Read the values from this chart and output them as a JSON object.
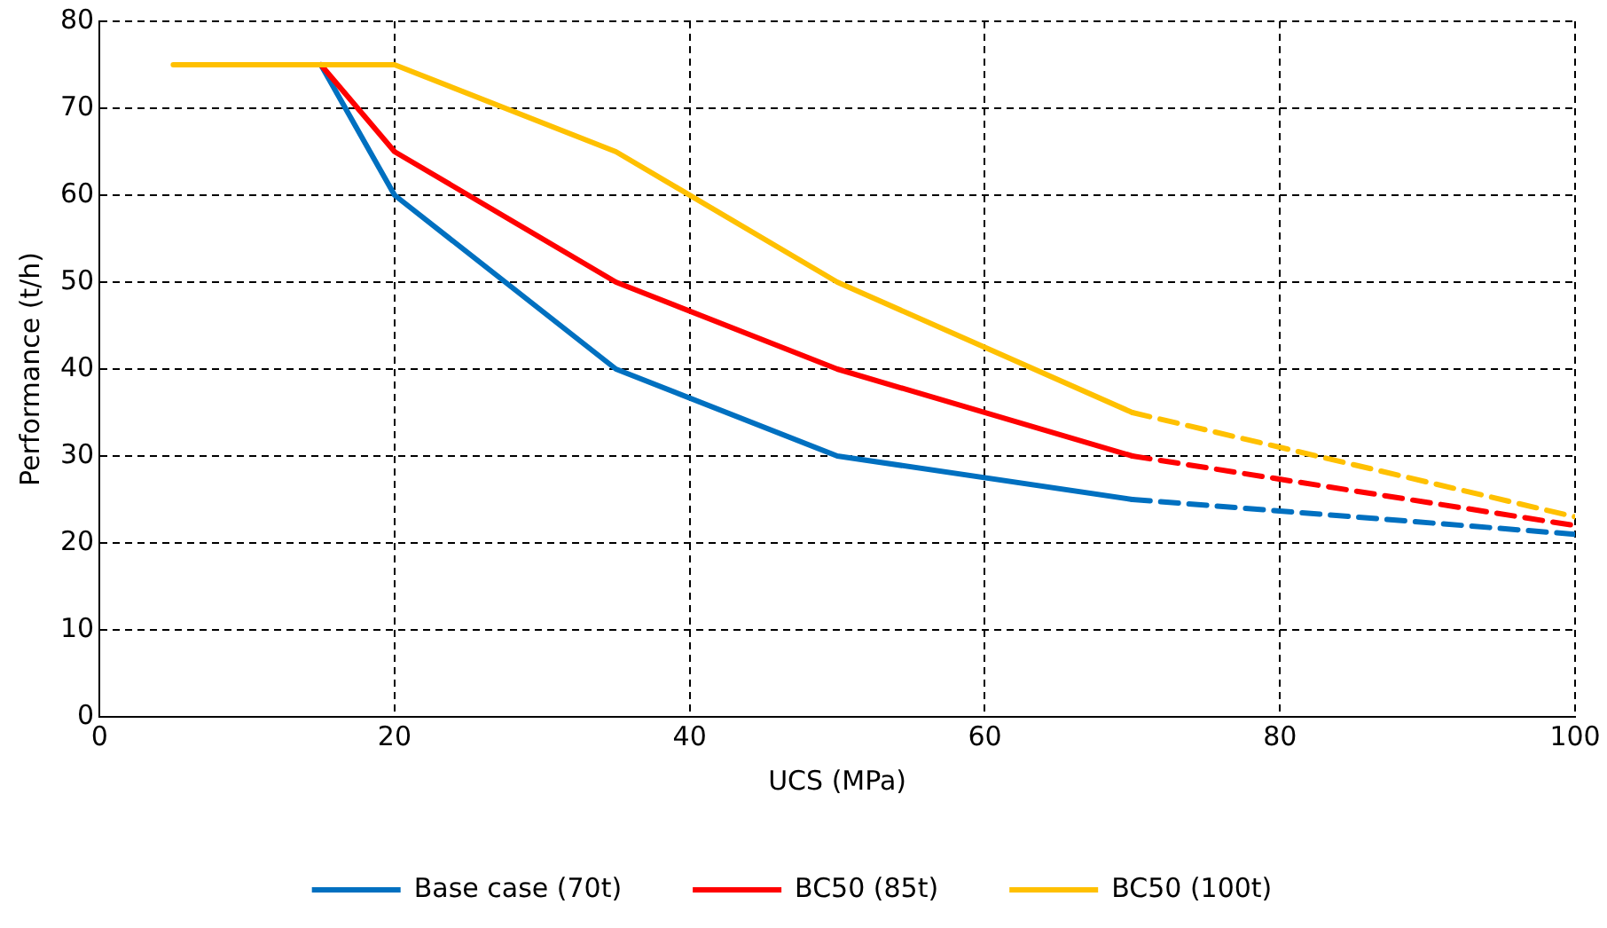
{
  "chart_data": {
    "type": "line",
    "xlabel": "UCS (MPa)",
    "ylabel": "Performance (t/h)",
    "xlim": [
      0,
      100
    ],
    "xticks": [
      0,
      20,
      40,
      60,
      80,
      100
    ],
    "ylim": [
      0,
      80
    ],
    "yticks": [
      0,
      10,
      20,
      30,
      40,
      50,
      60,
      70,
      80
    ],
    "grid": true,
    "legend": "bottom",
    "marker": "none",
    "series": [
      {
        "name": "Base case (70t)",
        "color": "#0070c0",
        "line_style": "solid",
        "x": [
          15,
          20,
          35,
          50,
          70
        ],
        "values": [
          75,
          60,
          40,
          30,
          25
        ]
      },
      {
        "name": "BC50 (85t)",
        "color": "#ff0000",
        "line_style": "solid",
        "x": [
          15,
          20,
          35,
          50,
          70
        ],
        "values": [
          75,
          65,
          50,
          40,
          30
        ]
      },
      {
        "name": "BC50 (100t)",
        "color": "#ffc000",
        "line_style": "solid",
        "x": [
          5,
          15,
          20,
          35,
          50,
          70
        ],
        "values": [
          75,
          75,
          75,
          65,
          50,
          35
        ]
      },
      {
        "color": "#0070c0",
        "line_style": "dashed",
        "x": [
          70,
          100
        ],
        "values": [
          25,
          21
        ]
      },
      {
        "color": "#ff0000",
        "line_style": "dashed",
        "x": [
          70,
          100
        ],
        "values": [
          30,
          22
        ]
      },
      {
        "color": "#ffc000",
        "line_style": "dashed",
        "x": [
          70,
          100
        ],
        "values": [
          35,
          23
        ]
      }
    ]
  }
}
